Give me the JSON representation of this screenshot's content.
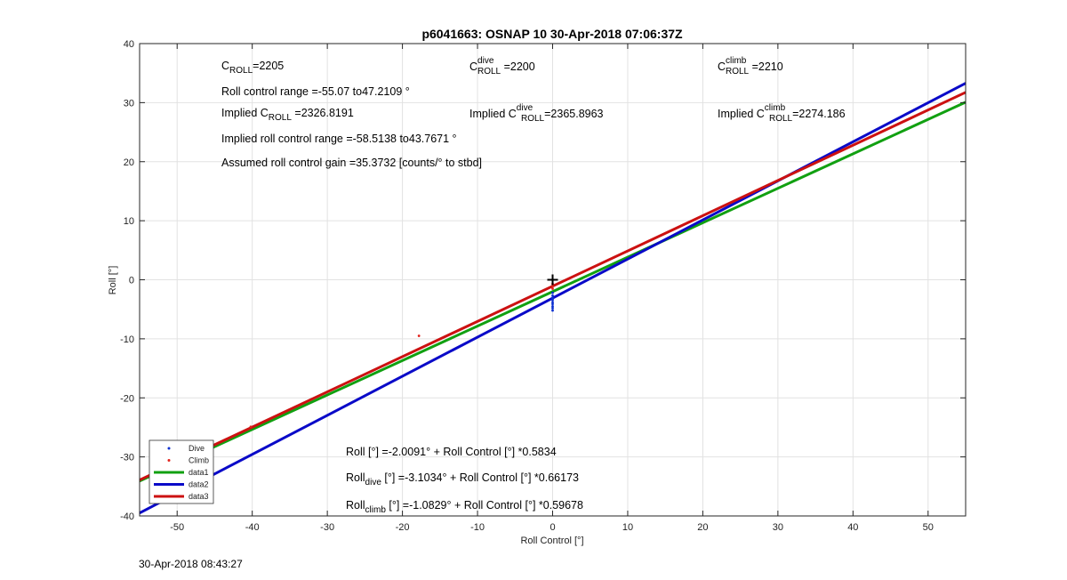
{
  "chart_data": {
    "type": "scatter",
    "title": "p6041663: OSNAP 10 30-Apr-2018 07:06:37Z",
    "xlabel": "Roll Control [°]",
    "ylabel": "Roll [°]",
    "xlim": [
      -55,
      55
    ],
    "ylim": [
      -40,
      40
    ],
    "xticks": [
      -50,
      -40,
      -30,
      -20,
      -10,
      0,
      10,
      20,
      30,
      40,
      50
    ],
    "yticks": [
      -40,
      -30,
      -20,
      -10,
      0,
      10,
      20,
      30,
      40
    ],
    "grid": true,
    "legend_position": "bottom-left",
    "marker_plus": {
      "x": 0,
      "y": 0
    },
    "series": [
      {
        "name": "Dive",
        "kind": "points",
        "color": "#0b2fd1",
        "x": [
          0,
          0,
          0,
          0,
          0,
          0,
          0,
          0,
          0
        ],
        "y": [
          -2.2,
          -2.7,
          -3.1,
          -3.4,
          -3.8,
          -4.1,
          -4.5,
          -4.8,
          -5.2
        ]
      },
      {
        "name": "Climb",
        "kind": "points",
        "color": "#e3221c",
        "x": [
          -40.2,
          -17.8,
          0,
          0,
          0
        ],
        "y": [
          -24.9,
          -9.5,
          -0.7,
          -1.1,
          -1.5
        ]
      },
      {
        "name": "data1",
        "kind": "line",
        "color": "#11a011",
        "slope": 0.5834,
        "intercept": -2.0091
      },
      {
        "name": "data2",
        "kind": "line",
        "color": "#0a0ac8",
        "slope": 0.66173,
        "intercept": -3.1034
      },
      {
        "name": "data3",
        "kind": "line",
        "color": "#cc1111",
        "slope": 0.59678,
        "intercept": -1.0829
      }
    ]
  },
  "annotations": {
    "c_roll": {
      "main": "C",
      "sub": "ROLL",
      "tail": "=2205"
    },
    "c_roll_dive": {
      "main": "C",
      "sup": "dive",
      "sub": "ROLL",
      "tail": " =2200"
    },
    "c_roll_climb": {
      "main": "C",
      "sup": "climb",
      "sub": "ROLL",
      "tail": " =2210"
    },
    "roll_range": "Roll control range =-55.07 to47.2109 °",
    "implied_c_roll": {
      "main": "Implied C",
      "sub": "ROLL",
      "tail": " =2326.8191"
    },
    "implied_c_dive": {
      "main": "Implied C",
      "sup": "dive",
      "sub": "ROLL",
      "tail": "=2365.8963"
    },
    "implied_c_climb": {
      "main": "Implied C",
      "sup": "climb",
      "sub": "ROLL",
      "tail": "=2274.186"
    },
    "implied_range": "Implied roll control range =-58.5138 to43.7671 °",
    "gain": "Assumed roll control gain =35.3732 [counts/° to stbd]",
    "fit_all": "Roll [°] =-2.0091° + Roll Control [°] *0.5834",
    "fit_dive": {
      "main": "Roll",
      "sub": "dive",
      "tail": " [°] =-3.1034° + Roll Control [°] *0.66173"
    },
    "fit_climb": {
      "main": "Roll",
      "sub": "climb",
      "tail": " [°] =-1.0829° + Roll Control [°] *0.59678"
    }
  },
  "footer": "30-Apr-2018 08:43:27"
}
